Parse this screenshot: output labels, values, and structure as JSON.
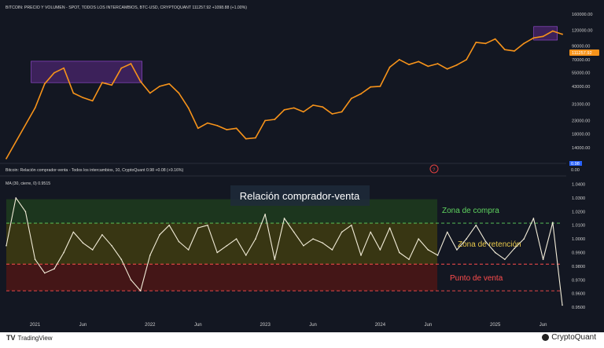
{
  "header": {
    "price_title": "BITCOIN: PRECIO Y VOLUMEN - SPOT, TODOS LOS INTERCAMBIOS, BTC-USD, CRYPTOQUANT 111257.92 +1098.88 (+1.00%)",
    "ratio_title": "Bitcoin: Relación comprador-venta - Todos los intercambios, 10, CryptoQuant 0.98 +0.08 (+9.16%)",
    "ma_title": "MA (30, cierre, 0) 0.9515",
    "chart_title": "Relación comprador-venta",
    "price_badge": "111257.92",
    "ratio_badge": "0.98",
    "ratio_badge2": "0.00",
    "question_mark": "?"
  },
  "zones": {
    "buy": "Zona de compra",
    "hold": "Zona de retención",
    "sell": "Punto de venta"
  },
  "logos": {
    "tradingview": "TradingView",
    "tradingview_mark": "TV",
    "cryptoquant": "CryptoQuant"
  },
  "colors": {
    "background": "#131722",
    "price_line": "#f7931a",
    "ma_line": "#f2ecd8",
    "buy_zone": "#1e3a1e",
    "hold_zone": "#3d3a12",
    "sell_zone": "#4a1616",
    "buy_label": "#5fd35f",
    "hold_label": "#e8c84a",
    "sell_label": "#ff4d4d",
    "highlight_box": "#6e2fa0"
  },
  "chart_data": [
    {
      "type": "line",
      "title": "BITCOIN: PRECIO Y VOLUMEN - SPOT, TODOS LOS INTERCAMBIOS, BTC-USD, CRYPTOQUANT",
      "yscale": "log",
      "yticks": [
        "160000.00",
        "120000.00",
        "90000.00",
        "70000.00",
        "55000.00",
        "43000.00",
        "31000.00",
        "23000.00",
        "18000.00",
        "14000.00"
      ],
      "ylim": [
        11000,
        170000
      ],
      "x": [
        "2020-10",
        "2021-01",
        "2021-02",
        "2021-03",
        "2021-04",
        "2021-05",
        "2021-06",
        "2021-07",
        "2021-08",
        "2021-09",
        "2021-10",
        "2021-11",
        "2021-12",
        "2022-01",
        "2022-02",
        "2022-03",
        "2022-04",
        "2022-05",
        "2022-06",
        "2022-07",
        "2022-08",
        "2022-09",
        "2022-10",
        "2022-11",
        "2022-12",
        "2023-01",
        "2023-02",
        "2023-03",
        "2023-04",
        "2023-05",
        "2023-06",
        "2023-07",
        "2023-08",
        "2023-09",
        "2023-10",
        "2023-11",
        "2023-12",
        "2024-01",
        "2024-02",
        "2024-03",
        "2024-04",
        "2024-05",
        "2024-06",
        "2024-07",
        "2024-08",
        "2024-09",
        "2024-10",
        "2024-11",
        "2024-12",
        "2025-01",
        "2025-02",
        "2025-03",
        "2025-04",
        "2025-05",
        "2025-06",
        "2025-07",
        "2025-08"
      ],
      "values": [
        11500,
        29000,
        45000,
        55000,
        60000,
        38000,
        35000,
        33000,
        46000,
        44000,
        60000,
        65000,
        47000,
        38000,
        43000,
        45000,
        38000,
        29000,
        20000,
        22000,
        21000,
        19500,
        20000,
        16500,
        16800,
        23000,
        23500,
        28000,
        29000,
        27000,
        30500,
        29500,
        26000,
        27000,
        34500,
        37500,
        42500,
        43000,
        61000,
        70000,
        64000,
        67500,
        62000,
        65000,
        59000,
        63500,
        70000,
        96000,
        94000,
        102000,
        84000,
        82000,
        94000,
        104000,
        107000,
        118000,
        111257.92
      ],
      "series": [
        {
          "name": "BTC-USD"
        }
      ]
    },
    {
      "type": "line",
      "title": "Relación comprador-venta",
      "subtitle": "MA (30, cierre, 0) 0.9515",
      "yticks": [
        "1.0400",
        "1.0300",
        "1.0200",
        "1.0100",
        "1.0000",
        "0.9900",
        "0.9800",
        "0.9700",
        "0.9600",
        "0.9500"
      ],
      "ylim": [
        0.946,
        1.042
      ],
      "xtick_labels": [
        "2021",
        "Jun",
        "2022",
        "Jun",
        "2023",
        "Jun",
        "2024",
        "Jun",
        "2025",
        "Jun"
      ],
      "zones": [
        {
          "name": "Zona de compra",
          "from": 1.0115,
          "to": 1.029
        },
        {
          "name": "Zona de retención",
          "from": 0.9815,
          "to": 1.0115
        },
        {
          "name": "Punto de venta",
          "from": 0.962,
          "to": 0.9815
        }
      ],
      "x": [
        "2020-10",
        "2020-11",
        "2020-12",
        "2021-01",
        "2021-02",
        "2021-03",
        "2021-04",
        "2021-05",
        "2021-06",
        "2021-07",
        "2021-08",
        "2021-09",
        "2021-10",
        "2021-11",
        "2021-12",
        "2022-01",
        "2022-02",
        "2022-03",
        "2022-04",
        "2022-05",
        "2022-06",
        "2022-07",
        "2022-08",
        "2022-09",
        "2022-10",
        "2022-11",
        "2022-12",
        "2023-01",
        "2023-02",
        "2023-03",
        "2023-04",
        "2023-05",
        "2023-06",
        "2023-07",
        "2023-08",
        "2023-09",
        "2023-10",
        "2023-11",
        "2023-12",
        "2024-01",
        "2024-02",
        "2024-03",
        "2024-04",
        "2024-05",
        "2024-06",
        "2024-07",
        "2024-08",
        "2024-09",
        "2024-10",
        "2024-11",
        "2024-12",
        "2025-01",
        "2025-02",
        "2025-03",
        "2025-04",
        "2025-05",
        "2025-06",
        "2025-07",
        "2025-08"
      ],
      "values": [
        0.995,
        1.03,
        1.02,
        0.985,
        0.975,
        0.978,
        0.99,
        1.005,
        0.997,
        0.992,
        1.003,
        0.995,
        0.985,
        0.97,
        0.962,
        0.988,
        1.003,
        1.01,
        0.998,
        0.992,
        1.008,
        1.01,
        0.99,
        0.995,
        1.0,
        0.988,
        1.0,
        1.018,
        0.985,
        1.015,
        1.005,
        0.995,
        1.0,
        0.997,
        0.992,
        1.005,
        1.01,
        0.988,
        1.005,
        0.992,
        1.008,
        0.99,
        0.985,
        1.0,
        0.992,
        0.988,
        1.005,
        0.992,
        1.0,
        1.01,
        0.998,
        0.99,
        0.985,
        0.993,
        1.0,
        1.015,
        0.985,
        1.012,
        0.9515
      ]
    }
  ]
}
